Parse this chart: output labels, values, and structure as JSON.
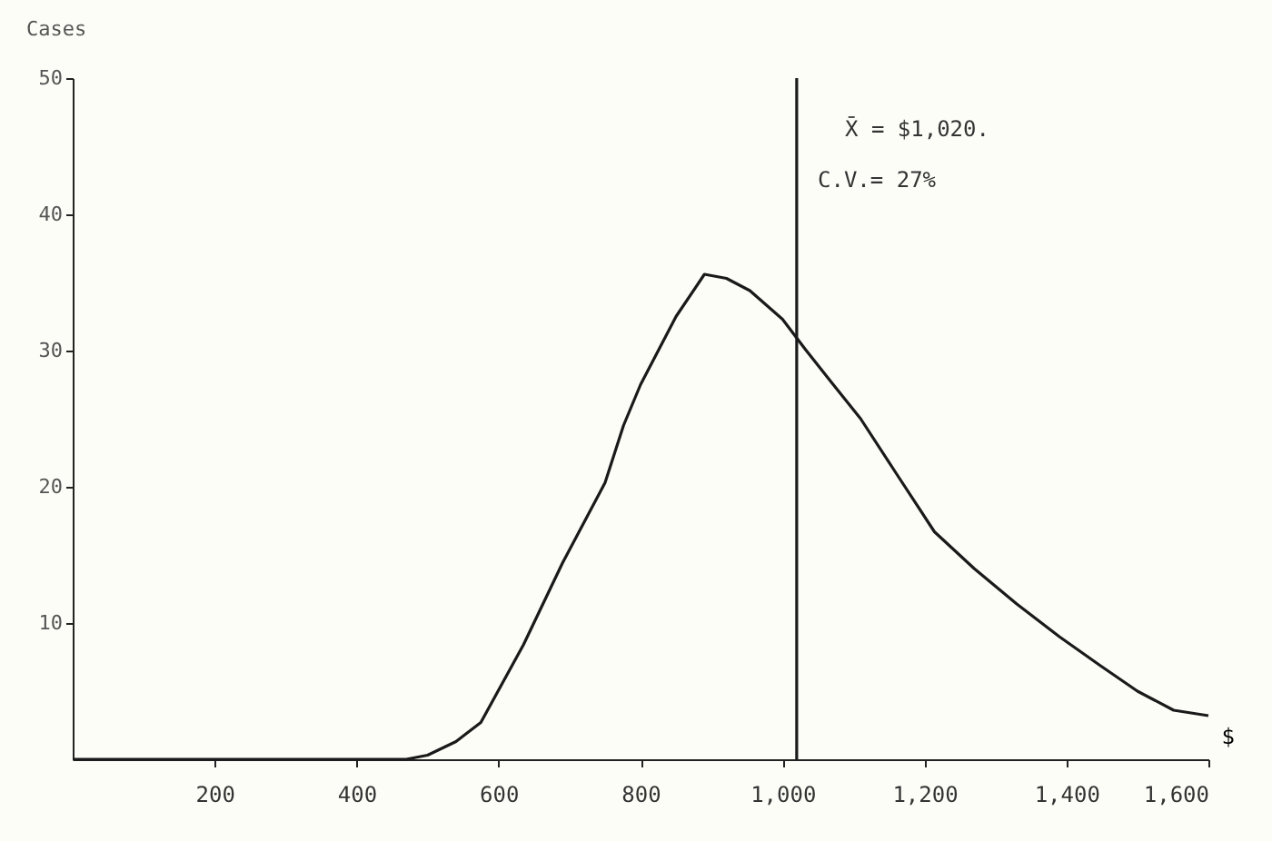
{
  "chart_data": {
    "type": "line",
    "xlabel": "$",
    "ylabel": "Cases",
    "x": [
      0,
      400,
      470,
      500,
      540,
      575,
      635,
      690,
      750,
      776,
      800,
      850,
      890,
      921,
      954,
      1000,
      1032,
      1070,
      1110,
      1160,
      1214,
      1270,
      1330,
      1390,
      1447,
      1500,
      1551,
      1600
    ],
    "series": [
      {
        "color": "#1a1a1a",
        "values": [
          0,
          0,
          0,
          0.3,
          1.3,
          2.7,
          8.4,
          14.4,
          20.3,
          24.5,
          27.5,
          32.5,
          35.6,
          35.3,
          34.4,
          32.3,
          30.1,
          27.6,
          25,
          21,
          16.7,
          14,
          11.4,
          9,
          6.9,
          5,
          3.6,
          3.2
        ]
      }
    ],
    "xlim": [
      0,
      1600
    ],
    "ylim": [
      0,
      50
    ],
    "xticks": [
      200,
      400,
      600,
      800,
      {
        "value": 1000,
        "label": "1,000"
      },
      {
        "value": 1200,
        "label": "1,200"
      },
      {
        "value": 1400,
        "label": "1,400"
      },
      {
        "value": 1600,
        "label": "1,600"
      }
    ],
    "yticks": [
      10,
      20,
      30,
      40,
      50
    ],
    "ref_lines": [
      {
        "axis": "x",
        "value": 1020,
        "color": "#1a1a1a"
      }
    ],
    "annotations": [
      "X̄ = $1,020.",
      "C.V.= 27%"
    ],
    "grid": false,
    "marker": "none",
    "line_style": "solid"
  }
}
